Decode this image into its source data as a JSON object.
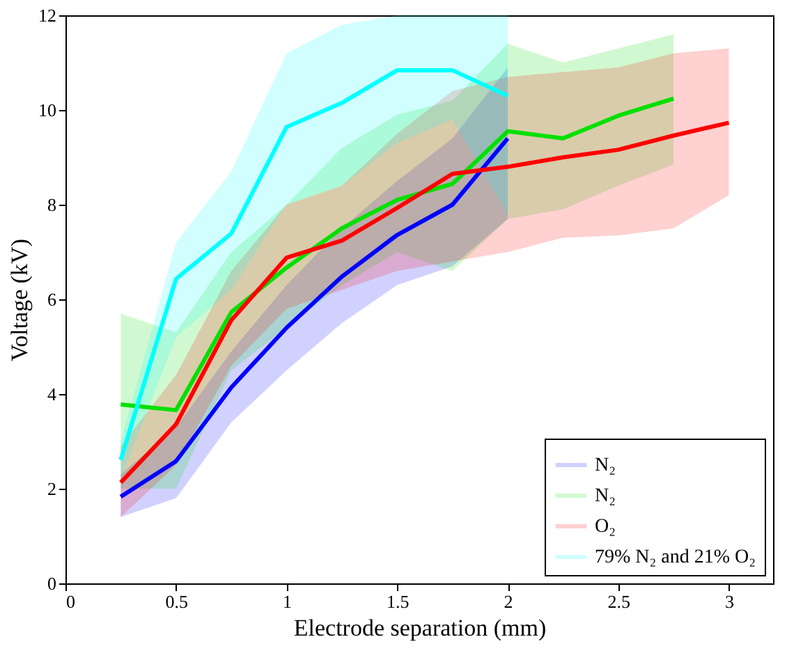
{
  "chart_data": {
    "type": "line",
    "xlabel": "Electrode separation (mm)",
    "ylabel": "Voltage (kV)",
    "xlim": [
      0,
      3.2
    ],
    "ylim": [
      0,
      12
    ],
    "xticks": [
      0,
      0.5,
      1,
      1.5,
      2,
      2.5,
      3
    ],
    "yticks": [
      0,
      2,
      4,
      6,
      8,
      10,
      12
    ],
    "grid": false,
    "legend": "bottom right",
    "line_style": "solid",
    "marker": "none",
    "series": [
      {
        "name": "N₂",
        "color": "#0000ff",
        "x": [
          0.25,
          0.5,
          0.75,
          1,
          1.25,
          1.5,
          1.75,
          2
        ],
        "values": [
          1.83,
          2.58,
          4.14,
          5.4,
          6.48,
          7.36,
          8.0,
          9.4
        ],
        "lower": [
          1.4,
          1.8,
          3.4,
          4.5,
          5.5,
          6.3,
          6.7,
          7.7
        ],
        "upper": [
          2.3,
          3.3,
          4.9,
          6.3,
          7.5,
          8.5,
          9.4,
          10.9
        ]
      },
      {
        "name": "N₂",
        "color": "#00e000",
        "x": [
          0.25,
          0.5,
          0.75,
          1,
          1.25,
          1.5,
          1.75,
          2,
          2.25,
          2.5,
          2.75
        ],
        "values": [
          3.78,
          3.66,
          5.73,
          6.67,
          7.5,
          8.1,
          8.44,
          9.55,
          9.4,
          9.88,
          10.24
        ],
        "lower": [
          2.0,
          2.0,
          4.5,
          5.4,
          6.3,
          7.0,
          6.6,
          7.7,
          7.9,
          8.4,
          8.85
        ],
        "upper": [
          5.7,
          5.3,
          7.0,
          8.0,
          9.2,
          9.9,
          10.2,
          11.4,
          11.0,
          11.3,
          11.6
        ]
      },
      {
        "name": "O₂",
        "color": "#ff0000",
        "x": [
          0.25,
          0.5,
          0.75,
          1,
          1.25,
          1.5,
          1.75,
          2,
          2.25,
          2.5,
          2.75,
          3
        ],
        "values": [
          2.13,
          3.36,
          5.56,
          6.88,
          7.24,
          7.93,
          8.65,
          8.8,
          9.0,
          9.16,
          9.46,
          9.73
        ],
        "lower": [
          1.4,
          2.5,
          4.6,
          5.8,
          6.2,
          6.6,
          6.8,
          7.0,
          7.3,
          7.35,
          7.5,
          8.2
        ],
        "upper": [
          2.9,
          4.4,
          6.6,
          8.0,
          8.4,
          9.5,
          10.4,
          10.7,
          10.8,
          10.9,
          11.2,
          11.3
        ]
      },
      {
        "name": "79% N₂ and 21% O₂",
        "color": "#00ffff",
        "x": [
          0.25,
          0.5,
          0.75,
          1,
          1.25,
          1.5,
          1.75,
          2
        ],
        "values": [
          2.61,
          6.43,
          7.39,
          9.64,
          10.15,
          10.84,
          10.84,
          10.3
        ],
        "lower": [
          2.2,
          5.2,
          6.2,
          8.0,
          8.4,
          9.3,
          9.8,
          7.8
        ],
        "upper": [
          3.0,
          7.2,
          8.7,
          11.2,
          11.8,
          12,
          12,
          12
        ]
      }
    ]
  }
}
